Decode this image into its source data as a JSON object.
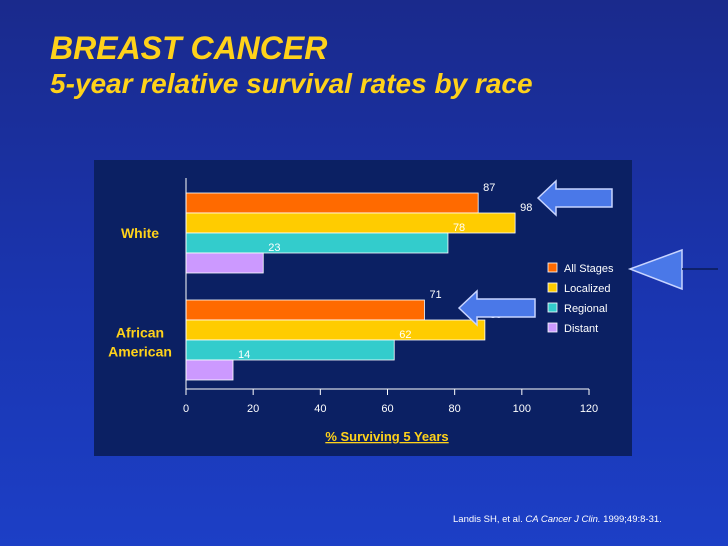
{
  "header": {
    "title": "BREAST CANCER",
    "subtitle": "5-year relative survival rates by race"
  },
  "citation": {
    "authors": "Landis SH, et al.",
    "journal": "CA Cancer J Clin.",
    "details": "1999;49:8-31."
  },
  "colors": {
    "title": "#ffd21a",
    "panel_background": "#0b2063",
    "arrow": "#4a78e8"
  },
  "chart_data": {
    "type": "bar",
    "orientation": "horizontal",
    "categories": [
      "White",
      "African American"
    ],
    "category_label_lines": [
      [
        "White"
      ],
      [
        "African",
        "American"
      ]
    ],
    "series": [
      {
        "name": "All Stages",
        "color": "#ff6a00",
        "values": [
          87,
          71
        ]
      },
      {
        "name": "Localized",
        "color": "#ffcc00",
        "values": [
          98,
          89
        ]
      },
      {
        "name": "Regional",
        "color": "#33cccc",
        "values": [
          78,
          62
        ]
      },
      {
        "name": "Distant",
        "color": "#cc99ff",
        "values": [
          23,
          14
        ]
      }
    ],
    "xlabel": "% Surviving 5 Years",
    "xlim": [
      0,
      120
    ],
    "xticks": [
      0,
      20,
      40,
      60,
      80,
      100,
      120
    ],
    "grid": false,
    "legend_position": "right"
  }
}
